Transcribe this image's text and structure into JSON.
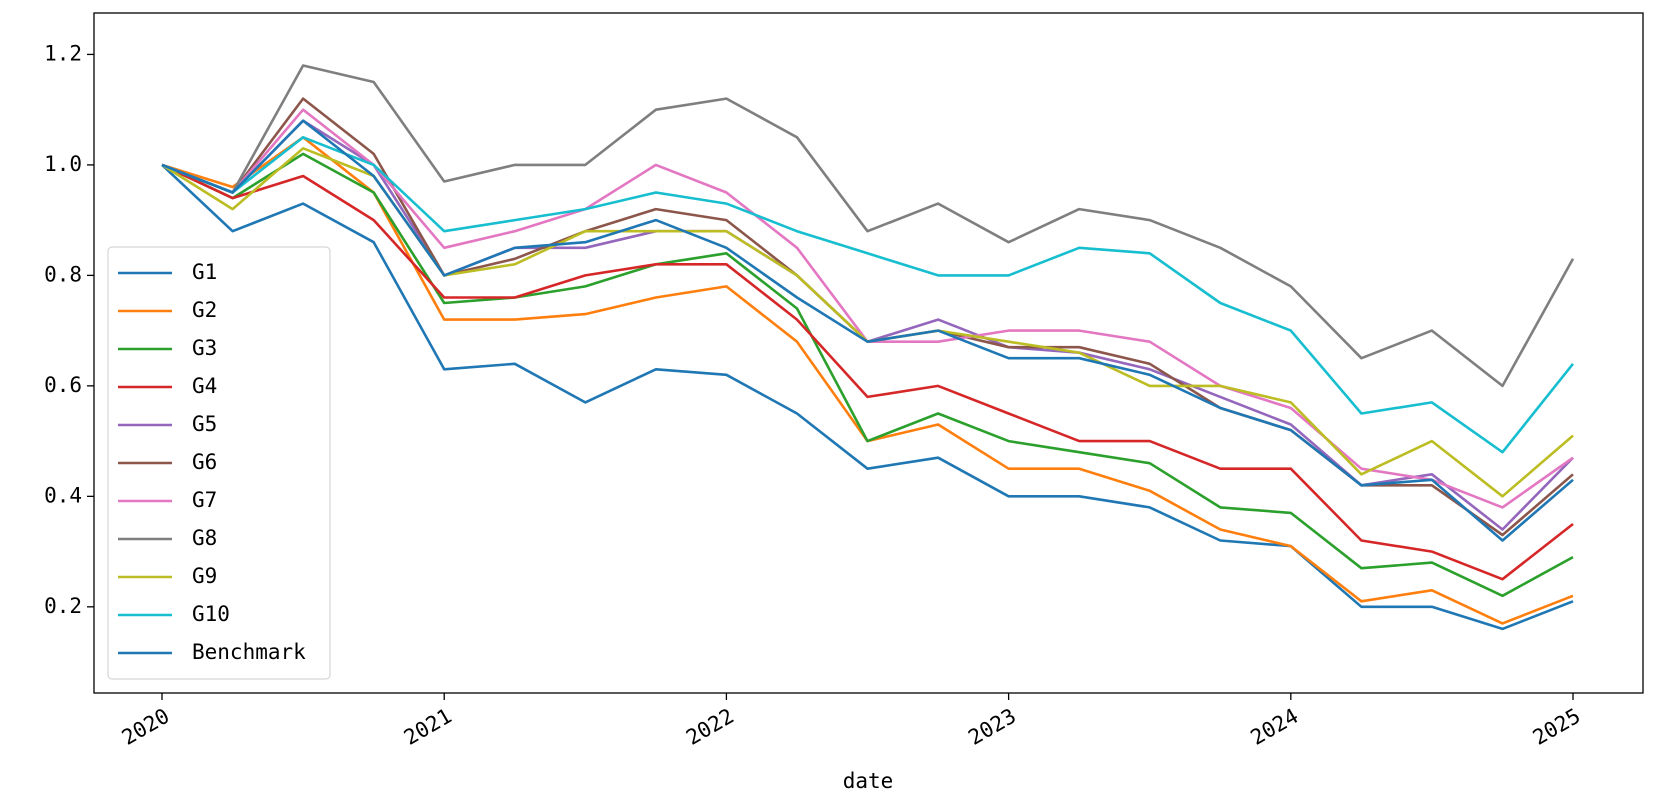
{
  "chart_data": {
    "type": "line",
    "x_label": "date",
    "x": [
      2020,
      2020.25,
      2020.5,
      2020.75,
      2021,
      2021.25,
      2021.5,
      2021.75,
      2022,
      2022.25,
      2022.5,
      2022.75,
      2023,
      2023.25,
      2023.5,
      2023.75,
      2024,
      2024.25,
      2024.5,
      2024.75,
      2025
    ],
    "xlim": [
      2019.759,
      2025.248
    ],
    "xticks": [
      2020,
      2021,
      2022,
      2023,
      2024,
      2025
    ],
    "ylim": [
      0.044,
      1.275
    ],
    "yticks": [
      0.2,
      0.4,
      0.6,
      0.8,
      {
        "value": 1,
        "label": "1.0"
      },
      1.2
    ],
    "legend": "lower left",
    "series": [
      {
        "name": "G1",
        "color": "#1f77b4",
        "values": [
          1.0,
          0.88,
          0.93,
          0.86,
          0.63,
          0.64,
          0.57,
          0.63,
          0.62,
          0.55,
          0.45,
          0.47,
          0.4,
          0.4,
          0.38,
          0.32,
          0.31,
          0.2,
          0.2,
          0.16,
          0.21
        ]
      },
      {
        "name": "G2",
        "color": "#ff7f0e",
        "values": [
          1.0,
          0.96,
          1.05,
          0.95,
          0.72,
          0.72,
          0.73,
          0.76,
          0.78,
          0.68,
          0.5,
          0.53,
          0.45,
          0.45,
          0.41,
          0.34,
          0.31,
          0.21,
          0.23,
          0.17,
          0.22
        ]
      },
      {
        "name": "G3",
        "color": "#2ca02c",
        "values": [
          1.0,
          0.94,
          1.02,
          0.95,
          0.75,
          0.76,
          0.78,
          0.82,
          0.84,
          0.74,
          0.5,
          0.55,
          0.5,
          0.48,
          0.46,
          0.38,
          0.37,
          0.27,
          0.28,
          0.22,
          0.29
        ]
      },
      {
        "name": "G4",
        "color": "#d62728",
        "values": [
          1.0,
          0.94,
          0.98,
          0.9,
          0.76,
          0.76,
          0.8,
          0.82,
          0.82,
          0.72,
          0.58,
          0.6,
          0.55,
          0.5,
          0.5,
          0.45,
          0.45,
          0.32,
          0.3,
          0.25,
          0.35
        ]
      },
      {
        "name": "G5",
        "color": "#9467bd",
        "values": [
          1.0,
          0.95,
          1.08,
          1.0,
          0.8,
          0.85,
          0.85,
          0.88,
          0.88,
          0.8,
          0.68,
          0.72,
          0.67,
          0.66,
          0.63,
          0.58,
          0.53,
          0.42,
          0.44,
          0.34,
          0.47
        ]
      },
      {
        "name": "G6",
        "color": "#8c564b",
        "values": [
          1.0,
          0.95,
          1.12,
          1.02,
          0.8,
          0.83,
          0.88,
          0.92,
          0.9,
          0.8,
          0.68,
          0.7,
          0.67,
          0.67,
          0.64,
          0.56,
          0.52,
          0.42,
          0.42,
          0.33,
          0.44
        ]
      },
      {
        "name": "G7",
        "color": "#e377c2",
        "values": [
          1.0,
          0.95,
          1.1,
          1.0,
          0.85,
          0.88,
          0.92,
          1.0,
          0.95,
          0.85,
          0.68,
          0.68,
          0.7,
          0.7,
          0.68,
          0.6,
          0.56,
          0.45,
          0.43,
          0.38,
          0.47
        ]
      },
      {
        "name": "G8",
        "color": "#7f7f7f",
        "values": [
          1.0,
          0.95,
          1.18,
          1.15,
          0.97,
          1.0,
          1.0,
          1.1,
          1.12,
          1.05,
          0.88,
          0.93,
          0.86,
          0.92,
          0.9,
          0.85,
          0.78,
          0.65,
          0.7,
          0.6,
          0.83
        ]
      },
      {
        "name": "G9",
        "color": "#bcbd22",
        "values": [
          1.0,
          0.92,
          1.03,
          0.98,
          0.8,
          0.82,
          0.88,
          0.88,
          0.88,
          0.8,
          0.68,
          0.7,
          0.68,
          0.66,
          0.6,
          0.6,
          0.57,
          0.44,
          0.5,
          0.4,
          0.51
        ]
      },
      {
        "name": "G10",
        "color": "#17becf",
        "values": [
          1.0,
          0.95,
          1.05,
          1.0,
          0.88,
          0.9,
          0.92,
          0.95,
          0.93,
          0.88,
          0.84,
          0.8,
          0.8,
          0.85,
          0.84,
          0.75,
          0.7,
          0.55,
          0.57,
          0.48,
          0.64
        ]
      },
      {
        "name": "Benchmark",
        "color": "#1f77b4",
        "values": [
          1.0,
          0.95,
          1.08,
          0.98,
          0.8,
          0.85,
          0.86,
          0.9,
          0.85,
          0.76,
          0.68,
          0.7,
          0.65,
          0.65,
          0.62,
          0.56,
          0.52,
          0.42,
          0.43,
          0.32,
          0.43
        ]
      }
    ]
  }
}
